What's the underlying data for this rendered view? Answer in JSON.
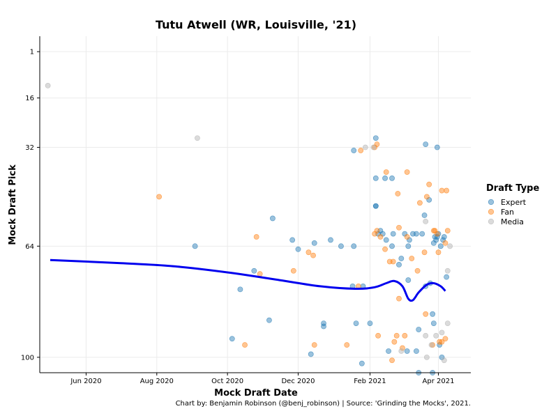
{
  "chart_data": {
    "type": "scatter",
    "title": "Tutu Atwell (WR, Louisville, '21)",
    "xlabel": "Mock Draft Date",
    "ylabel": "Mock Draft Pick",
    "caption": "Chart by: Benjamin Robinson (@benj_robinson) | Source: 'Grinding the Mocks', 2021.",
    "x_ticks": [
      {
        "date": "2020-06-01",
        "label": "Jun 2020"
      },
      {
        "date": "2020-08-01",
        "label": "Aug 2020"
      },
      {
        "date": "2020-10-01",
        "label": "Oct 2020"
      },
      {
        "date": "2020-12-01",
        "label": "Dec 2020"
      },
      {
        "date": "2021-02-01",
        "label": "Feb 2021"
      },
      {
        "date": "2021-04-01",
        "label": "Apr 2021"
      }
    ],
    "xlim": [
      "2020-04-22",
      "2021-04-29"
    ],
    "y_ticks": [
      1,
      16,
      32,
      64,
      100
    ],
    "ylim": [
      105,
      -4
    ],
    "y_reversed": true,
    "grid": true,
    "legend": {
      "title": "Draft Type",
      "position": "right",
      "entries": [
        {
          "name": "Expert",
          "color": "#1f77b4"
        },
        {
          "name": "Fan",
          "color": "#ff7f0e"
        },
        {
          "name": "Media",
          "color": "#b0b0b0"
        }
      ]
    },
    "trend_color": "#0000ee",
    "trend": [
      {
        "date": "2020-05-01",
        "pick": 68.5
      },
      {
        "date": "2020-07-01",
        "pick": 69.5
      },
      {
        "date": "2020-08-15",
        "pick": 70.5
      },
      {
        "date": "2020-10-01",
        "pick": 72.5
      },
      {
        "date": "2020-11-15",
        "pick": 75.0
      },
      {
        "date": "2020-12-20",
        "pick": 77.0
      },
      {
        "date": "2021-01-20",
        "pick": 77.8
      },
      {
        "date": "2021-02-05",
        "pick": 77.3
      },
      {
        "date": "2021-02-15",
        "pick": 76.0
      },
      {
        "date": "2021-02-22",
        "pick": 75.3
      },
      {
        "date": "2021-03-01",
        "pick": 77.0
      },
      {
        "date": "2021-03-06",
        "pick": 81.0
      },
      {
        "date": "2021-03-10",
        "pick": 81.5
      },
      {
        "date": "2021-03-15",
        "pick": 79.0
      },
      {
        "date": "2021-03-22",
        "pick": 76.5
      },
      {
        "date": "2021-03-28",
        "pick": 76.0
      },
      {
        "date": "2021-04-03",
        "pick": 77.0
      },
      {
        "date": "2021-04-07",
        "pick": 78.5
      }
    ],
    "series": [
      {
        "name": "Expert",
        "points": [
          [
            "2020-09-03",
            64
          ],
          [
            "2020-11-09",
            55
          ],
          [
            "2020-12-29",
            62
          ],
          [
            "2020-10-05",
            94
          ],
          [
            "2020-10-12",
            78
          ],
          [
            "2020-10-24",
            72
          ],
          [
            "2020-11-06",
            88
          ],
          [
            "2020-11-26",
            62
          ],
          [
            "2020-12-01",
            65
          ],
          [
            "2020-12-12",
            99
          ],
          [
            "2020-12-15",
            63
          ],
          [
            "2020-12-23",
            90
          ],
          [
            "2020-12-23",
            89
          ],
          [
            "2021-01-07",
            64
          ],
          [
            "2021-01-17",
            77
          ],
          [
            "2021-01-18",
            33
          ],
          [
            "2021-01-18",
            64
          ],
          [
            "2021-01-20",
            89
          ],
          [
            "2021-01-25",
            102
          ],
          [
            "2021-01-26",
            77
          ],
          [
            "2021-02-01",
            89
          ],
          [
            "2021-02-06",
            29
          ],
          [
            "2021-02-06",
            42
          ],
          [
            "2021-02-06",
            51
          ],
          [
            "2021-02-06",
            51
          ],
          [
            "2021-02-08",
            60
          ],
          [
            "2021-02-10",
            59
          ],
          [
            "2021-02-12",
            60
          ],
          [
            "2021-02-14",
            42
          ],
          [
            "2021-02-15",
            62
          ],
          [
            "2021-02-17",
            98
          ],
          [
            "2021-02-20",
            42
          ],
          [
            "2021-02-20",
            64
          ],
          [
            "2021-02-21",
            60
          ],
          [
            "2021-02-28",
            68
          ],
          [
            "2021-03-03",
            60
          ],
          [
            "2021-03-05",
            98
          ],
          [
            "2021-03-06",
            75
          ],
          [
            "2021-03-06",
            64
          ],
          [
            "2021-03-07",
            62
          ],
          [
            "2021-03-10",
            60
          ],
          [
            "2021-03-13",
            98
          ],
          [
            "2021-03-13",
            60
          ],
          [
            "2021-03-15",
            91
          ],
          [
            "2021-03-15",
            105
          ],
          [
            "2021-03-20",
            54
          ],
          [
            "2021-03-21",
            31
          ],
          [
            "2021-03-24",
            49
          ],
          [
            "2021-03-27",
            86
          ],
          [
            "2021-03-28",
            63
          ],
          [
            "2021-03-29",
            61
          ],
          [
            "2021-03-30",
            62
          ],
          [
            "2021-03-31",
            32
          ],
          [
            "2021-03-31",
            61
          ],
          [
            "2021-04-01",
            60
          ],
          [
            "2021-04-02",
            96
          ],
          [
            "2021-04-04",
            100
          ],
          [
            "2021-04-05",
            62
          ],
          [
            "2021-04-08",
            74
          ],
          [
            "2021-03-28",
            89
          ],
          [
            "2021-03-27",
            105
          ],
          [
            "2021-02-26",
            70
          ],
          [
            "2021-03-25",
            76
          ],
          [
            "2021-04-03",
            64
          ],
          [
            "2021-04-06",
            61
          ],
          [
            "2021-03-18",
            60
          ],
          [
            "2021-03-21",
            77
          ]
        ]
      },
      {
        "name": "Fan",
        "points": [
          [
            "2020-08-03",
            48
          ],
          [
            "2020-10-16",
            96
          ],
          [
            "2020-10-26",
            61
          ],
          [
            "2020-10-29",
            73
          ],
          [
            "2020-11-27",
            72
          ],
          [
            "2020-12-10",
            66
          ],
          [
            "2020-12-14",
            67
          ],
          [
            "2020-12-15",
            96
          ],
          [
            "2021-01-12",
            96
          ],
          [
            "2021-01-22",
            77
          ],
          [
            "2021-01-24",
            33
          ],
          [
            "2021-02-05",
            60
          ],
          [
            "2021-02-07",
            59
          ],
          [
            "2021-02-08",
            93
          ],
          [
            "2021-02-10",
            61
          ],
          [
            "2021-02-14",
            65
          ],
          [
            "2021-02-15",
            40
          ],
          [
            "2021-02-18",
            69
          ],
          [
            "2021-02-20",
            101
          ],
          [
            "2021-02-21",
            69
          ],
          [
            "2021-02-22",
            95
          ],
          [
            "2021-02-24",
            93
          ],
          [
            "2021-02-26",
            81
          ],
          [
            "2021-02-26",
            58
          ],
          [
            "2021-03-01",
            97
          ],
          [
            "2021-03-03",
            93
          ],
          [
            "2021-03-05",
            40
          ],
          [
            "2021-03-05",
            61
          ],
          [
            "2021-03-09",
            68
          ],
          [
            "2021-03-14",
            72
          ],
          [
            "2021-03-16",
            50
          ],
          [
            "2021-03-20",
            66
          ],
          [
            "2021-03-21",
            86
          ],
          [
            "2021-03-22",
            48
          ],
          [
            "2021-03-24",
            44
          ],
          [
            "2021-03-27",
            96
          ],
          [
            "2021-03-29",
            59
          ],
          [
            "2021-03-31",
            60
          ],
          [
            "2021-04-01",
            66
          ],
          [
            "2021-04-02",
            95
          ],
          [
            "2021-04-04",
            95
          ],
          [
            "2021-04-04",
            46
          ],
          [
            "2021-04-08",
            46
          ],
          [
            "2021-04-07",
            63
          ],
          [
            "2021-04-07",
            94
          ],
          [
            "2021-04-09",
            59
          ],
          [
            "2021-02-05",
            32
          ],
          [
            "2021-02-07",
            31
          ],
          [
            "2021-02-25",
            47
          ],
          [
            "2021-03-28",
            59
          ]
        ]
      },
      {
        "name": "Media",
        "points": [
          [
            "2020-04-29",
            12
          ],
          [
            "2020-09-05",
            29
          ],
          [
            "2021-01-28",
            32
          ],
          [
            "2021-02-04",
            32
          ],
          [
            "2021-02-28",
            98
          ],
          [
            "2021-03-21",
            56
          ],
          [
            "2021-03-21",
            93
          ],
          [
            "2021-03-22",
            100
          ],
          [
            "2021-03-26",
            96
          ],
          [
            "2021-04-04",
            92
          ],
          [
            "2021-04-06",
            101
          ],
          [
            "2021-04-09",
            89
          ],
          [
            "2021-04-11",
            64
          ],
          [
            "2021-04-09",
            72
          ],
          [
            "2021-03-30",
            93
          ]
        ]
      }
    ]
  }
}
